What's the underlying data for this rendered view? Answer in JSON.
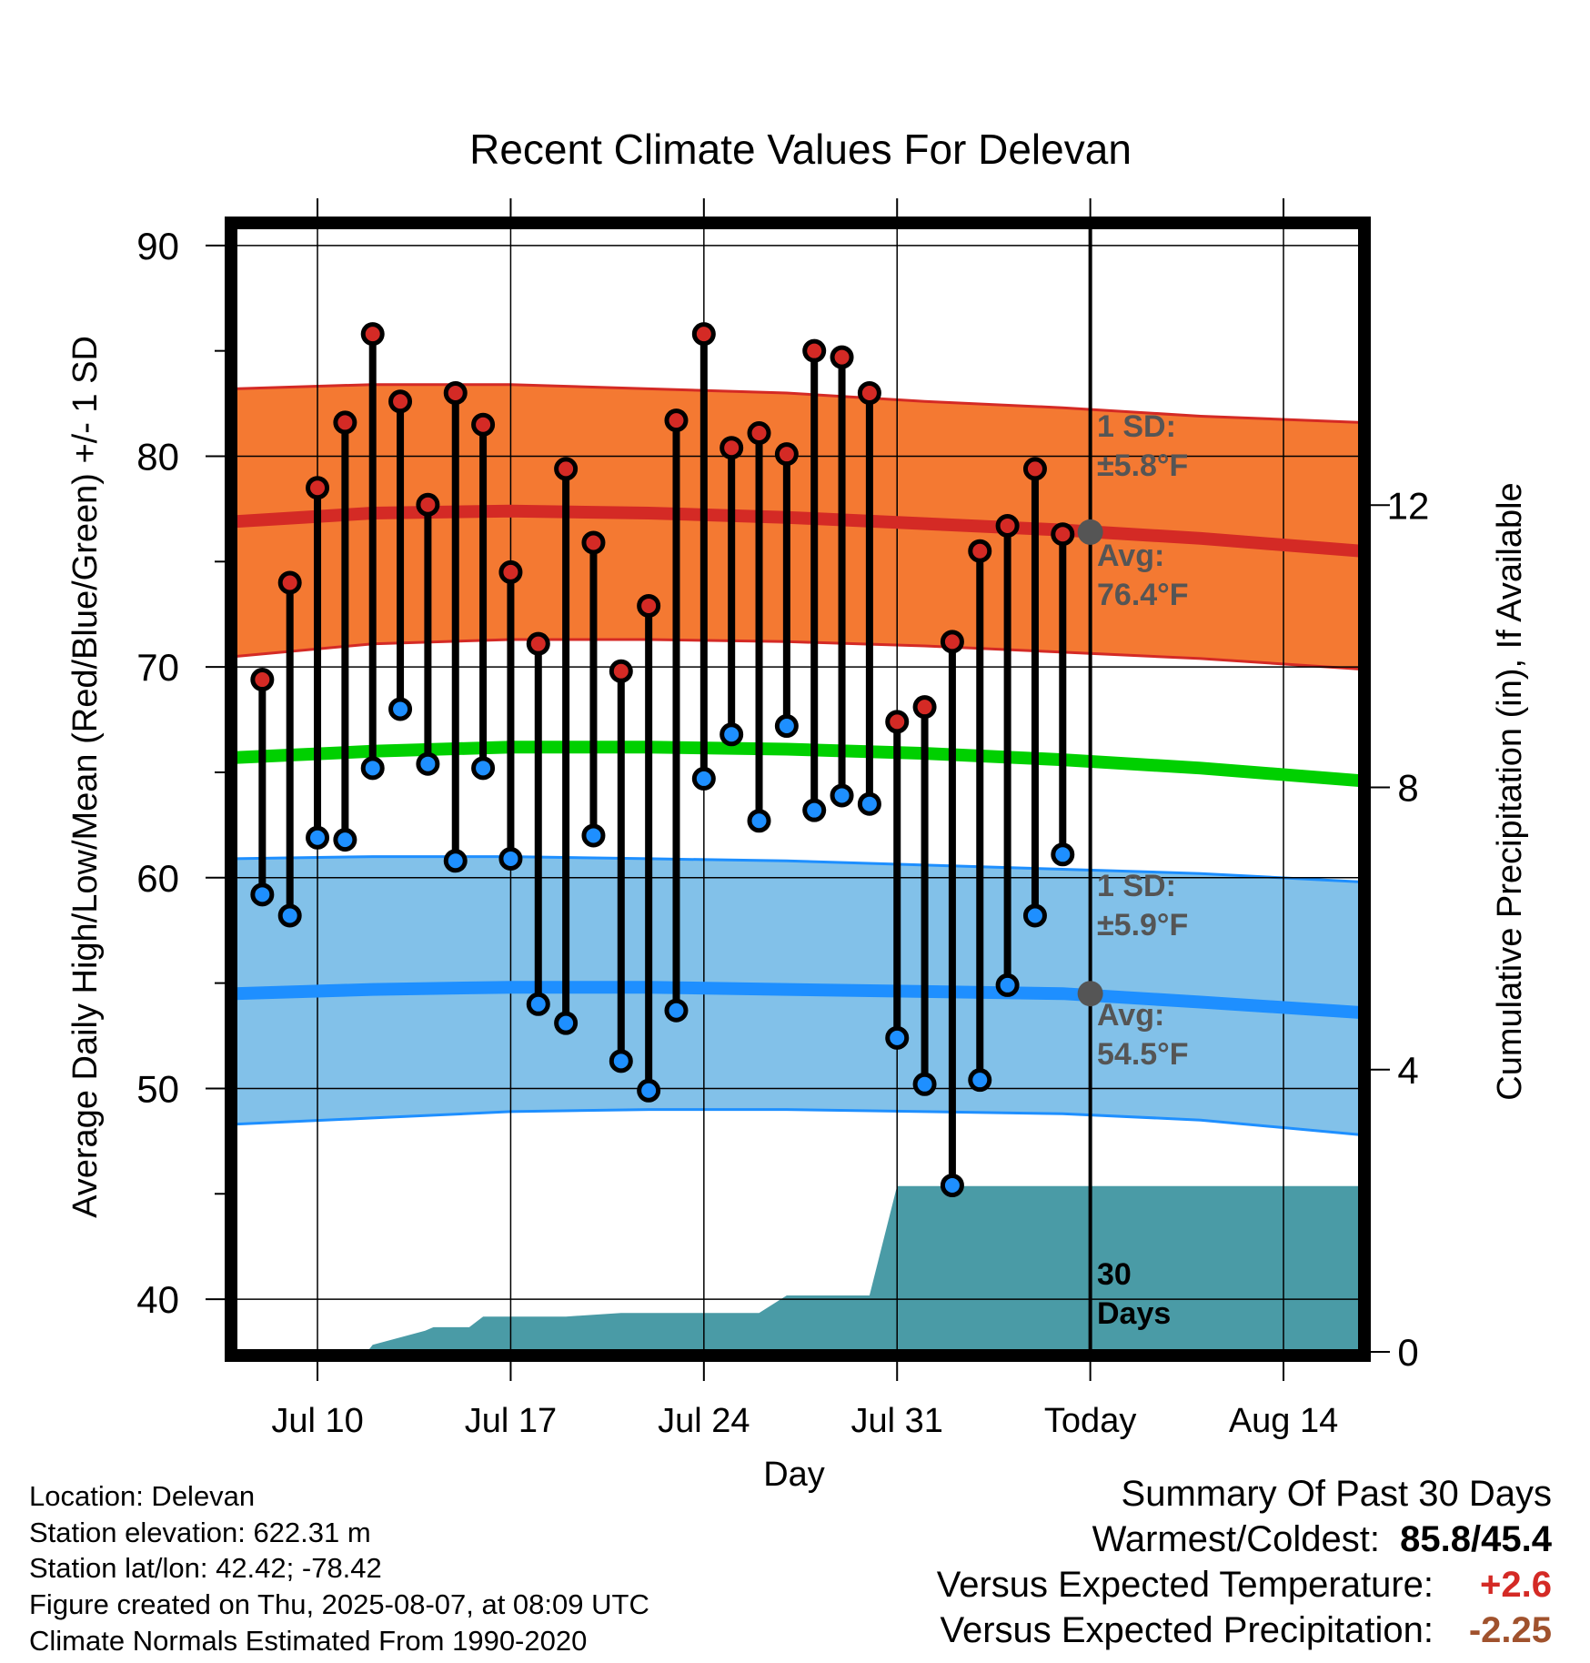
{
  "chart_data": {
    "type": "bar",
    "title": "Recent Climate Values For Delevan",
    "xlabel": "Day",
    "ylabel": "Average Daily High/Low/Mean (Red/Blue/Green) +/- 1 SD",
    "y2label": "Cumulative Precipitation (in), If Available",
    "ylim": [
      37.5,
      90.9
    ],
    "y2lim": [
      0,
      16
    ],
    "yticks": [
      40,
      50,
      60,
      70,
      80,
      90
    ],
    "y2ticks": [
      0,
      4,
      8,
      12
    ],
    "xlim": [
      0,
      40.8
    ],
    "xticks": [
      {
        "x": 3,
        "label": "Jul 10"
      },
      {
        "x": 10,
        "label": "Jul 17"
      },
      {
        "x": 17,
        "label": "Jul 24"
      },
      {
        "x": 24,
        "label": "Jul 31"
      },
      {
        "x": 31,
        "label": "Today"
      },
      {
        "x": 38,
        "label": "Aug 14"
      }
    ],
    "today_x": 31,
    "days": [
      "Jul 8",
      "Jul 9",
      "Jul 10",
      "Jul 11",
      "Jul 12",
      "Jul 13",
      "Jul 14",
      "Jul 15",
      "Jul 16",
      "Jul 17",
      "Jul 18",
      "Jul 19",
      "Jul 20",
      "Jul 21",
      "Jul 22",
      "Jul 23",
      "Jul 24",
      "Jul 25",
      "Jul 26",
      "Jul 27",
      "Jul 28",
      "Jul 29",
      "Jul 30",
      "Jul 31",
      "Aug 1",
      "Aug 2",
      "Aug 3",
      "Aug 4",
      "Aug 5",
      "Aug 6"
    ],
    "highs": [
      69.4,
      74.0,
      78.5,
      81.6,
      85.8,
      82.6,
      77.7,
      83.0,
      81.5,
      74.5,
      71.1,
      79.4,
      75.9,
      69.8,
      72.9,
      81.7,
      85.8,
      80.4,
      81.1,
      80.1,
      85.0,
      84.7,
      83.0,
      67.4,
      68.1,
      71.2,
      75.5,
      76.7,
      79.4,
      76.3
    ],
    "lows": [
      59.2,
      58.2,
      61.9,
      61.8,
      65.2,
      68.0,
      65.4,
      60.8,
      65.2,
      60.9,
      54.0,
      53.1,
      62.0,
      51.3,
      49.9,
      53.7,
      64.7,
      66.8,
      62.7,
      67.2,
      63.2,
      63.9,
      63.5,
      52.4,
      50.2,
      45.4,
      50.4,
      54.9,
      58.2,
      61.1
    ],
    "normal_x": [
      0,
      5,
      10,
      15,
      20,
      25,
      30,
      35,
      40.8
    ],
    "normal_high": [
      76.9,
      77.3,
      77.4,
      77.3,
      77.1,
      76.8,
      76.5,
      76.1,
      75.5
    ],
    "normal_high_sd_upper": [
      83.2,
      83.4,
      83.4,
      83.2,
      83.0,
      82.6,
      82.3,
      81.9,
      81.6
    ],
    "normal_high_sd_lower": [
      70.5,
      71.1,
      71.3,
      71.3,
      71.2,
      71.0,
      70.7,
      70.4,
      69.9
    ],
    "normal_mean": [
      65.7,
      66.0,
      66.2,
      66.2,
      66.1,
      65.9,
      65.6,
      65.2,
      64.6
    ],
    "normal_low": [
      54.5,
      54.7,
      54.8,
      54.8,
      54.7,
      54.6,
      54.5,
      54.1,
      53.6
    ],
    "normal_low_sd_upper": [
      60.9,
      61.0,
      61.0,
      60.9,
      60.8,
      60.6,
      60.4,
      60.2,
      59.8
    ],
    "normal_low_sd_lower": [
      48.3,
      48.6,
      48.9,
      49.0,
      49.0,
      48.9,
      48.8,
      48.5,
      47.8
    ],
    "precip_x": [
      3.0,
      4.8,
      5.0,
      6.9,
      7.2,
      8.5,
      9.0,
      10.0,
      12.0,
      14.0,
      16.0,
      17.0,
      19.0,
      20.0,
      22.0,
      23.0,
      24.0,
      31.0,
      40.8
    ],
    "precip_y": [
      0,
      0,
      0.1,
      0.3,
      0.35,
      0.35,
      0.5,
      0.5,
      0.5,
      0.55,
      0.55,
      0.55,
      0.55,
      0.8,
      0.8,
      0.8,
      2.35,
      2.35,
      2.35
    ],
    "period_label": [
      "30",
      "Days"
    ],
    "high_annotation": {
      "sd_label": "1 SD:",
      "sd_value": "±5.8°F",
      "avg_label": "Avg:",
      "avg_value": "76.4°F",
      "avg": 76.4
    },
    "low_annotation": {
      "sd_label": "1 SD:",
      "sd_value": "±5.9°F",
      "avg_label": "Avg:",
      "avg_value": "54.5°F",
      "avg": 54.5
    },
    "colors": {
      "high_band": "#f47932",
      "high_line": "#d42a25",
      "mean_line": "#00d000",
      "low_band": "#82c1e9",
      "low_line": "#1e8fff",
      "precip": "#4a9ba6",
      "high_marker": "#d42a25",
      "low_marker": "#1e8fff",
      "annotation": "#555555"
    },
    "grid": true,
    "legend": "none"
  },
  "meta": {
    "location": "Location: Delevan",
    "elevation": "Station elevation: 622.31 m",
    "latlon": "Station lat/lon: 42.42; -78.42",
    "created": "Figure created on Thu, 2025-08-07, at 08:09 UTC",
    "normals": "Climate Normals Estimated From 1990-2020"
  },
  "summary": {
    "title": "Summary Of Past 30 Days",
    "warmest_label": "Warmest/Coldest:",
    "warmest_value": "85.8/45.4",
    "temp_label": "Versus Expected Temperature:",
    "temp_value": "+2.6",
    "temp_color": "#d42a25",
    "precip_label": "Versus Expected Precipitation:",
    "precip_value": "-2.25",
    "precip_color": "#a0522d"
  }
}
